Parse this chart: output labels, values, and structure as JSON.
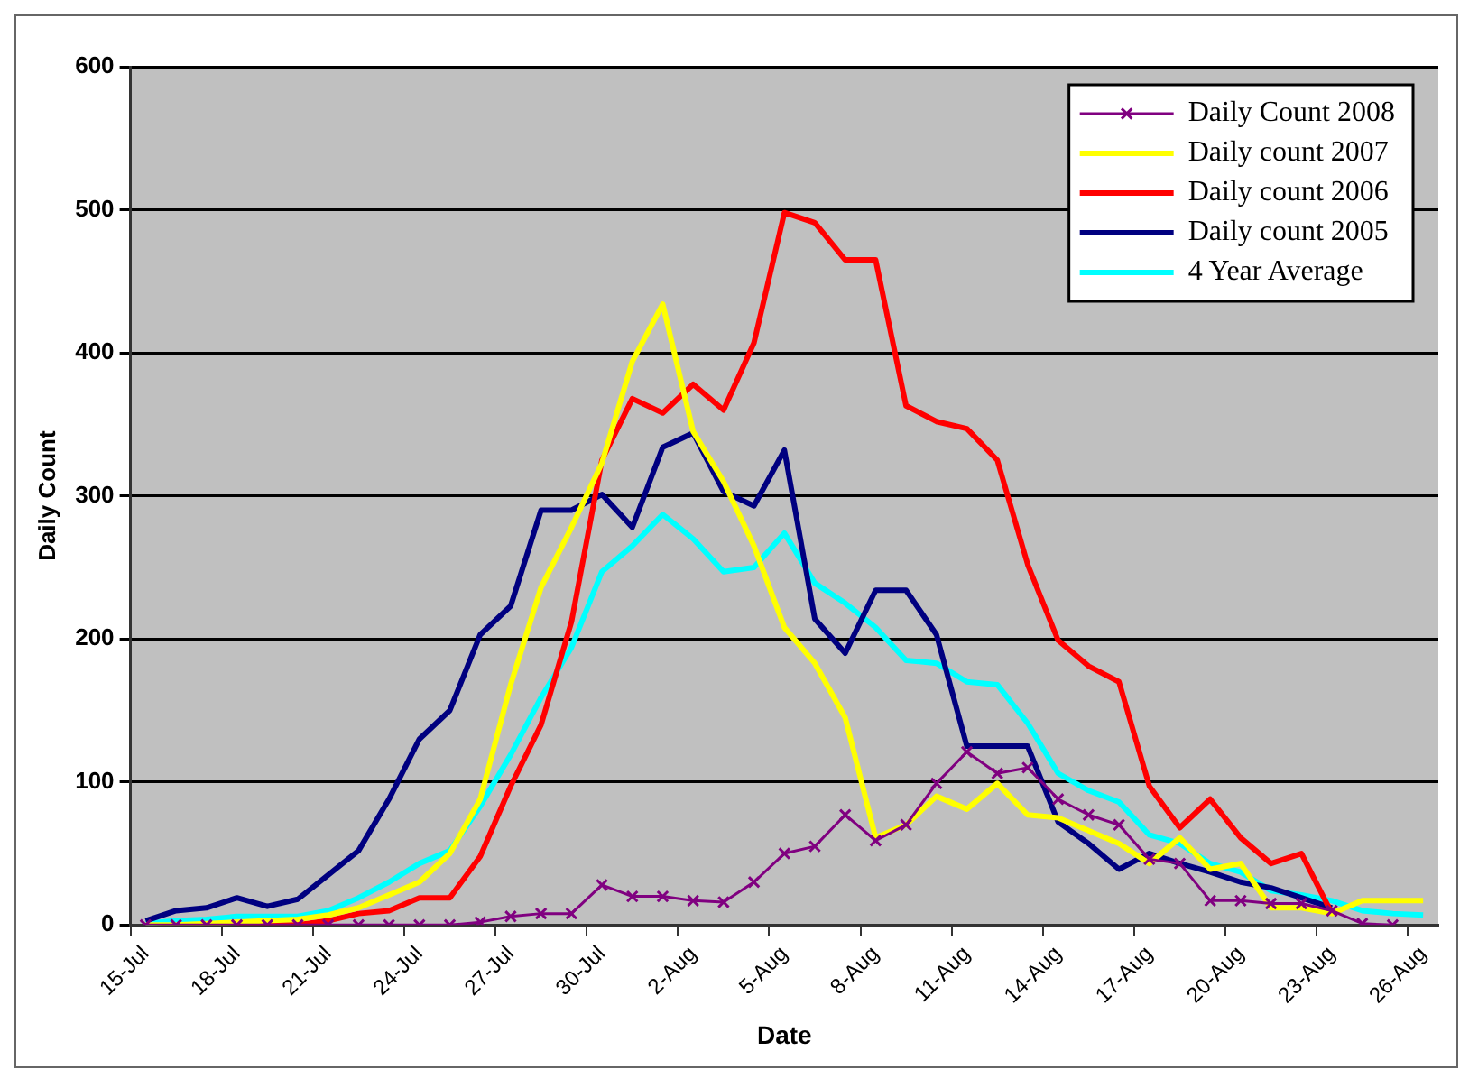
{
  "chart_data": {
    "type": "line",
    "xlabel": "Date",
    "ylabel": "Daily Count",
    "categories": [
      "15-Jul",
      null,
      null,
      "18-Jul",
      null,
      null,
      "21-Jul",
      null,
      null,
      "24-Jul",
      null,
      null,
      "27-Jul",
      null,
      null,
      "30-Jul",
      null,
      null,
      "2-Aug",
      null,
      null,
      "5-Aug",
      null,
      null,
      "8-Aug",
      null,
      null,
      "11-Aug",
      null,
      null,
      "14-Aug",
      null,
      null,
      "17-Aug",
      null,
      null,
      "20-Aug",
      null,
      null,
      "23-Aug",
      null,
      null,
      "26-Aug"
    ],
    "series": [
      {
        "name": "Daily Count 2008",
        "color": "#800080",
        "marker": "cross",
        "values": [
          0,
          0,
          0,
          0,
          0,
          0,
          0,
          0,
          0,
          0,
          0,
          2,
          6,
          8,
          8,
          28,
          20,
          20,
          17,
          16,
          30,
          50,
          55,
          77,
          59,
          70,
          99,
          121,
          106,
          110,
          88,
          77,
          70,
          46,
          43,
          17,
          17,
          15,
          15,
          10,
          1,
          0,
          null
        ]
      },
      {
        "name": "Daily count 2007",
        "color": "#ffff00",
        "values": [
          0,
          0,
          1,
          2,
          3,
          4,
          7,
          12,
          21,
          30,
          50,
          88,
          168,
          236,
          278,
          323,
          394,
          434,
          345,
          310,
          265,
          208,
          183,
          145,
          61,
          70,
          90,
          81,
          99,
          77,
          75,
          66,
          57,
          43,
          61,
          39,
          43,
          12,
          12,
          8,
          17,
          17,
          17
        ]
      },
      {
        "name": "Daily count 2006",
        "color": "#ff0000",
        "values": [
          null,
          null,
          null,
          0,
          0,
          0,
          3,
          8,
          10,
          19,
          19,
          48,
          97,
          140,
          212,
          325,
          368,
          358,
          378,
          360,
          407,
          498,
          491,
          465,
          465,
          363,
          352,
          347,
          325,
          252,
          199,
          181,
          170,
          97,
          68,
          88,
          61,
          43,
          50,
          8,
          null,
          null,
          null
        ]
      },
      {
        "name": "Daily count 2005",
        "color": "#000080",
        "values": [
          3,
          10,
          12,
          19,
          13,
          18,
          35,
          52,
          88,
          130,
          150,
          203,
          223,
          290,
          290,
          301,
          278,
          334,
          344,
          303,
          293,
          332,
          214,
          190,
          234,
          234,
          203,
          125,
          125,
          125,
          72,
          57,
          39,
          50,
          43,
          37,
          30,
          26,
          19,
          12,
          null,
          null,
          null
        ]
      },
      {
        "name": "4 Year Average",
        "color": "#00ffff",
        "values": [
          1,
          3,
          4,
          6,
          6,
          6,
          10,
          19,
          30,
          43,
          52,
          83,
          119,
          159,
          194,
          247,
          265,
          287,
          270,
          247,
          250,
          274,
          239,
          225,
          208,
          185,
          183,
          170,
          168,
          141,
          106,
          94,
          86,
          63,
          57,
          43,
          37,
          24,
          21,
          17,
          10,
          8,
          7
        ]
      }
    ],
    "ylim": [
      0,
      600
    ],
    "yticks": [
      0,
      100,
      200,
      300,
      400,
      500,
      600
    ],
    "grid": "y",
    "legend": "top right",
    "marker": "none",
    "line_style": "solid"
  }
}
